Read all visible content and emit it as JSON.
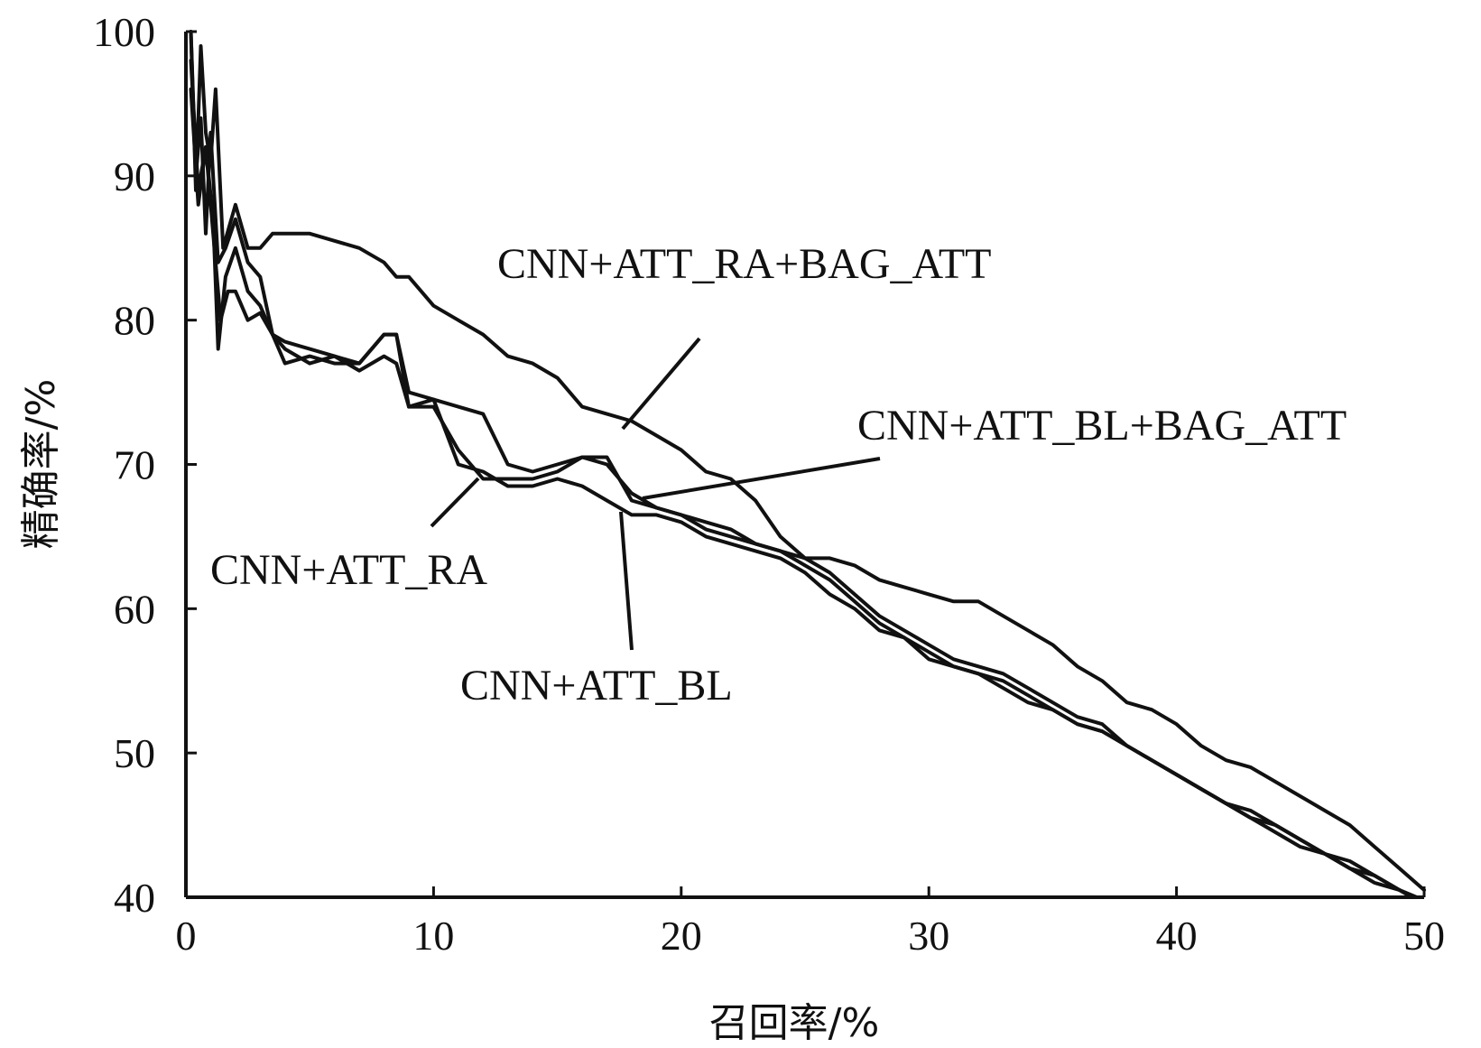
{
  "chart_data": {
    "type": "line",
    "title": "",
    "xlabel": "召回率/%",
    "ylabel": "精确率/%",
    "xlim": [
      0,
      50
    ],
    "ylim": [
      40,
      100
    ],
    "xticks": [
      "0",
      "10",
      "20",
      "30",
      "40",
      "50"
    ],
    "yticks": [
      "40",
      "50",
      "60",
      "70",
      "80",
      "90",
      "100"
    ],
    "grid": false,
    "legend": "none",
    "series": [
      {
        "name": "CNN+ATT_RA+BAG_ATT",
        "x": [
          0.2,
          0.4,
          0.6,
          0.8,
          1.0,
          1.2,
          1.5,
          2.0,
          2.5,
          3.0,
          3.5,
          4.0,
          5.0,
          6.0,
          7.0,
          8.0,
          8.5,
          9.0,
          10.0,
          11.0,
          12.0,
          13.0,
          14.0,
          15.0,
          16.0,
          17.0,
          18.0,
          19.0,
          20.0,
          21.0,
          22.0,
          23.0,
          24.0,
          25.0,
          26.0,
          27.0,
          28.0,
          29.0,
          30.0,
          31.0,
          32.0,
          33.0,
          34.0,
          35.0,
          36.0,
          37.0,
          38.0,
          39.0,
          40.0,
          41.0,
          42.0,
          43.0,
          44.0,
          45.0,
          46.0,
          47.0,
          48.0,
          49.0,
          50.0
        ],
        "y": [
          100,
          89,
          99,
          93,
          91,
          96,
          85,
          88,
          85,
          85,
          86,
          86,
          86,
          85.5,
          85,
          84,
          83,
          83,
          81,
          80,
          79,
          77.5,
          77,
          76,
          74,
          73.5,
          73,
          72,
          71,
          69.5,
          69,
          67.5,
          65,
          63.5,
          63.5,
          63,
          62,
          61.5,
          61,
          60.5,
          60.5,
          59.5,
          58.5,
          57.5,
          56,
          55,
          53.5,
          53,
          52,
          50.5,
          49.5,
          49,
          48,
          47,
          46,
          45,
          43.5,
          42,
          40.5
        ]
      },
      {
        "name": "CNN+ATT_BL+BAG_ATT",
        "x": [
          0.2,
          0.4,
          0.6,
          0.8,
          1.0,
          1.3,
          1.6,
          2.0,
          2.5,
          3.0,
          3.5,
          4.0,
          5.0,
          6.0,
          7.0,
          8.0,
          8.5,
          9.0,
          10.0,
          11.0,
          12.0,
          13.0,
          14.0,
          15.0,
          16.0,
          17.0,
          18.0,
          19.0,
          20.0,
          21.0,
          22.0,
          23.0,
          24.0,
          25.0,
          26.0,
          27.0,
          28.0,
          29.0,
          30.0,
          31.0,
          32.0,
          33.0,
          34.0,
          35.0,
          36.0,
          37.0,
          38.0,
          39.0,
          40.0,
          41.0,
          42.0,
          43.0,
          44.0,
          45.0,
          46.0,
          47.0,
          48.0,
          49.0,
          49.6
        ],
        "y": [
          100,
          90,
          94,
          86,
          93,
          84,
          85,
          87,
          84,
          83,
          79,
          78.5,
          78,
          77.5,
          77,
          79,
          79,
          75,
          74.5,
          74,
          73.5,
          70,
          69.5,
          70,
          70.5,
          70.5,
          67.5,
          67,
          66.5,
          66,
          65.5,
          64.5,
          64,
          63.5,
          62.5,
          61,
          59.5,
          58.5,
          57.5,
          56.5,
          56,
          55.5,
          54.5,
          53.5,
          52.5,
          52,
          50.5,
          49.5,
          48.5,
          47.5,
          46.5,
          45.5,
          44.5,
          43.5,
          43,
          42,
          41,
          40.5,
          40
        ]
      },
      {
        "name": "CNN+ATT_RA",
        "x": [
          0.2,
          0.5,
          0.8,
          1.1,
          1.3,
          1.6,
          2.0,
          2.5,
          3.0,
          3.5,
          4.0,
          5.0,
          6.0,
          7.0,
          8.0,
          8.5,
          9.0,
          10.0,
          11.0,
          12.0,
          13.0,
          14.0,
          15.0,
          16.0,
          17.0,
          18.0,
          19.0,
          20.0,
          21.0,
          22.0,
          23.0,
          24.0,
          25.0,
          26.0,
          27.0,
          28.0,
          29.0,
          30.0,
          31.0,
          32.0,
          33.0,
          34.0,
          35.0,
          36.0,
          37.0,
          38.0,
          39.0,
          40.0,
          41.0,
          42.0,
          43.0,
          44.0,
          45.0,
          46.0,
          47.0,
          48.0,
          49.0,
          49.7
        ],
        "y": [
          98,
          89,
          92,
          87,
          78,
          83,
          85,
          82,
          81,
          79,
          77,
          77.5,
          77,
          77,
          79,
          79,
          74,
          74,
          71,
          69,
          69,
          69,
          69.5,
          70.5,
          70,
          68,
          67,
          66.5,
          65.5,
          65,
          64.5,
          64,
          63,
          62,
          60.5,
          59,
          58,
          57,
          56,
          55.5,
          55,
          54,
          53,
          52,
          51.5,
          50.5,
          49.5,
          48.5,
          47.5,
          46.5,
          45.5,
          45,
          44,
          43,
          42.5,
          41.5,
          40.5,
          40
        ]
      },
      {
        "name": "CNN+ATT_BL",
        "x": [
          0.2,
          0.5,
          0.8,
          1.1,
          1.4,
          1.7,
          2.0,
          2.5,
          3.0,
          3.5,
          4.0,
          5.0,
          6.0,
          7.0,
          8.0,
          8.5,
          9.0,
          10.0,
          11.0,
          12.0,
          13.0,
          14.0,
          15.0,
          16.0,
          17.0,
          18.0,
          19.0,
          20.0,
          21.0,
          22.0,
          23.0,
          24.0,
          25.0,
          26.0,
          27.0,
          28.0,
          29.0,
          30.0,
          31.0,
          32.0,
          33.0,
          34.0,
          35.0,
          36.0,
          37.0,
          38.0,
          39.0,
          40.0,
          41.0,
          42.0,
          43.0,
          44.0,
          45.0,
          46.0,
          47.0,
          48.0,
          49.0,
          49.5
        ],
        "y": [
          96,
          88,
          92,
          86,
          80,
          82,
          82,
          80,
          80.5,
          79,
          78,
          77,
          77.5,
          76.5,
          77.5,
          77,
          74,
          74.5,
          70,
          69.5,
          68.5,
          68.5,
          69,
          68.5,
          67.5,
          66.5,
          66.5,
          66,
          65,
          64.5,
          64,
          63.5,
          62.5,
          61,
          60,
          58.5,
          58,
          56.5,
          56,
          55.5,
          54.5,
          53.5,
          53,
          52,
          51.5,
          50.5,
          49.5,
          48.5,
          47.5,
          46.5,
          46,
          45,
          44,
          43,
          42,
          41.5,
          40.5,
          40
        ]
      }
    ]
  }
}
